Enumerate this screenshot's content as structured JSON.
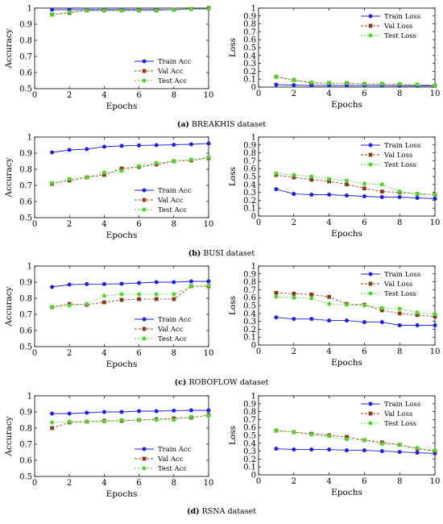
{
  "figure": {
    "captions": [
      {
        "tag": "(a)",
        "text": "BREAKHIS dataset"
      },
      {
        "tag": "(b)",
        "text": "BUSI dataset"
      },
      {
        "tag": "(c)",
        "text": "ROBOFLOW dataset"
      },
      {
        "tag": "(d)",
        "text": "RSNA dataset"
      }
    ]
  },
  "colors": {
    "train": "#1f1fe6",
    "val": "#8b3a1a",
    "test": "#4fd62a"
  },
  "chart_data": [
    {
      "type": "line",
      "panel": "a-accuracy",
      "xlabel": "Epochs",
      "ylabel": "Accuracy",
      "xlim": [
        0,
        10
      ],
      "ylim": [
        0.5,
        1
      ],
      "xticks": [
        0,
        2,
        4,
        6,
        8,
        10
      ],
      "yticks": [
        0.5,
        0.6,
        0.7,
        0.8,
        0.9,
        1
      ],
      "ytick_labels": [
        "0.5",
        "0.6",
        "0.7",
        "0.8",
        "0.9",
        "1"
      ],
      "legend": "bottom-right",
      "x": [
        1,
        2,
        3,
        4,
        5,
        6,
        7,
        8,
        9,
        10
      ],
      "series": [
        {
          "name": "Train Acc",
          "values": [
            0.99,
            0.99,
            0.99,
            0.99,
            0.99,
            0.99,
            0.99,
            0.99,
            0.995,
            0.995
          ]
        },
        {
          "name": "Val Acc",
          "values": [
            0.96,
            0.97,
            0.985,
            0.985,
            0.985,
            0.985,
            0.985,
            0.99,
            0.995,
            1.0
          ]
        },
        {
          "name": "Test Acc",
          "values": [
            0.96,
            0.975,
            0.985,
            0.985,
            0.985,
            0.985,
            0.985,
            0.99,
            0.995,
            0.995
          ]
        }
      ]
    },
    {
      "type": "line",
      "panel": "a-loss",
      "xlabel": "Epochs",
      "ylabel": "Loss",
      "xlim": [
        0,
        10
      ],
      "ylim": [
        0,
        1
      ],
      "xticks": [
        0,
        2,
        4,
        6,
        8,
        10
      ],
      "yticks": [
        0,
        0.1,
        0.2,
        0.3,
        0.4,
        0.5,
        0.6,
        0.7,
        0.8,
        0.9,
        1
      ],
      "ytick_labels": [
        "0",
        "0.1",
        "0.2",
        "0.3",
        "0.4",
        "0.5",
        "0.6",
        "0.7",
        "0.8",
        "0.9",
        "1"
      ],
      "legend": "top-right",
      "x": [
        1,
        2,
        3,
        4,
        5,
        6,
        7,
        8,
        9,
        10
      ],
      "series": [
        {
          "name": "Train Loss",
          "values": [
            0.03,
            0.025,
            0.02,
            0.02,
            0.02,
            0.02,
            0.02,
            0.015,
            0.015,
            0.015
          ]
        },
        {
          "name": "Val Loss",
          "values": [
            0.13,
            0.09,
            0.05,
            0.05,
            0.05,
            0.04,
            0.04,
            0.035,
            0.03,
            0.02
          ]
        },
        {
          "name": "Test Loss",
          "values": [
            0.13,
            0.09,
            0.06,
            0.05,
            0.05,
            0.04,
            0.04,
            0.04,
            0.03,
            0.02
          ]
        }
      ]
    },
    {
      "type": "line",
      "panel": "b-accuracy",
      "xlabel": "Epochs",
      "ylabel": "Accuracy",
      "xlim": [
        0,
        10
      ],
      "ylim": [
        0.5,
        1
      ],
      "xticks": [
        0,
        2,
        4,
        6,
        8,
        10
      ],
      "yticks": [
        0.5,
        0.6,
        0.7,
        0.8,
        0.9,
        1
      ],
      "ytick_labels": [
        "0.5",
        "0.6",
        "0.7",
        "0.8",
        "0.9",
        "1"
      ],
      "legend": "bottom-right",
      "x": [
        1,
        2,
        3,
        4,
        5,
        6,
        7,
        8,
        9,
        10
      ],
      "series": [
        {
          "name": "Train Acc",
          "values": [
            0.905,
            0.92,
            0.925,
            0.94,
            0.945,
            0.948,
            0.95,
            0.952,
            0.955,
            0.96
          ]
        },
        {
          "name": "Val Acc",
          "values": [
            0.71,
            0.73,
            0.75,
            0.765,
            0.805,
            0.815,
            0.83,
            0.85,
            0.855,
            0.87
          ]
        },
        {
          "name": "Test Acc",
          "values": [
            0.715,
            0.74,
            0.75,
            0.78,
            0.79,
            0.82,
            0.84,
            0.85,
            0.86,
            0.875
          ]
        }
      ]
    },
    {
      "type": "line",
      "panel": "b-loss",
      "xlabel": "Epochs",
      "ylabel": "Loss",
      "xlim": [
        0,
        10
      ],
      "ylim": [
        0,
        1
      ],
      "xticks": [
        0,
        2,
        4,
        6,
        8,
        10
      ],
      "yticks": [
        0,
        0.1,
        0.2,
        0.3,
        0.4,
        0.5,
        0.6,
        0.7,
        0.8,
        0.9,
        1
      ],
      "ytick_labels": [
        "0",
        "0.1",
        "0.2",
        "0.3",
        "0.4",
        "0.5",
        "0.6",
        "0.7",
        "0.8",
        "0.9",
        "1"
      ],
      "legend": "top-right",
      "x": [
        1,
        2,
        3,
        4,
        5,
        6,
        7,
        8,
        9,
        10
      ],
      "series": [
        {
          "name": "Train Loss",
          "values": [
            0.34,
            0.28,
            0.27,
            0.27,
            0.26,
            0.25,
            0.24,
            0.24,
            0.23,
            0.22
          ]
        },
        {
          "name": "Val Loss",
          "values": [
            0.52,
            0.49,
            0.46,
            0.44,
            0.4,
            0.35,
            0.31,
            0.3,
            0.28,
            0.27
          ]
        },
        {
          "name": "Test Loss",
          "values": [
            0.54,
            0.52,
            0.5,
            0.47,
            0.45,
            0.41,
            0.4,
            0.31,
            0.28,
            0.27
          ]
        }
      ]
    },
    {
      "type": "line",
      "panel": "c-accuracy",
      "xlabel": "Epochs",
      "ylabel": "Accuracy",
      "xlim": [
        0,
        10
      ],
      "ylim": [
        0.5,
        1
      ],
      "xticks": [
        0,
        2,
        4,
        6,
        8,
        10
      ],
      "yticks": [
        0.5,
        0.6,
        0.7,
        0.8,
        0.9,
        1
      ],
      "ytick_labels": [
        "0.5",
        "0.6",
        "0.7",
        "0.8",
        "0.9",
        "1"
      ],
      "legend": "bottom-right",
      "x": [
        1,
        2,
        3,
        4,
        5,
        6,
        7,
        8,
        9,
        10
      ],
      "series": [
        {
          "name": "Train Acc",
          "values": [
            0.87,
            0.885,
            0.888,
            0.888,
            0.89,
            0.895,
            0.9,
            0.9,
            0.905,
            0.905
          ]
        },
        {
          "name": "Val Acc",
          "values": [
            0.745,
            0.765,
            0.76,
            0.775,
            0.79,
            0.795,
            0.795,
            0.795,
            0.875,
            0.875
          ]
        },
        {
          "name": "Test Acc",
          "values": [
            0.745,
            0.755,
            0.765,
            0.815,
            0.825,
            0.825,
            0.825,
            0.825,
            0.875,
            0.88
          ]
        }
      ]
    },
    {
      "type": "line",
      "panel": "c-loss",
      "xlabel": "Epochs",
      "ylabel": "Loss",
      "xlim": [
        0,
        10
      ],
      "ylim": [
        0,
        1
      ],
      "xticks": [
        0,
        2,
        4,
        6,
        8,
        10
      ],
      "yticks": [
        0,
        0.1,
        0.2,
        0.3,
        0.4,
        0.5,
        0.6,
        0.7,
        0.8,
        0.9,
        1
      ],
      "ytick_labels": [
        "0",
        "0.1",
        "0.2",
        "0.3",
        "0.4",
        "0.5",
        "0.6",
        "0.7",
        "0.8",
        "0.9",
        "1"
      ],
      "legend": "top-right",
      "x": [
        1,
        2,
        3,
        4,
        5,
        6,
        7,
        8,
        9,
        10
      ],
      "series": [
        {
          "name": "Train Loss",
          "values": [
            0.35,
            0.33,
            0.33,
            0.31,
            0.31,
            0.29,
            0.29,
            0.25,
            0.25,
            0.25
          ]
        },
        {
          "name": "Val Loss",
          "values": [
            0.66,
            0.65,
            0.64,
            0.61,
            0.52,
            0.51,
            0.44,
            0.4,
            0.38,
            0.36
          ]
        },
        {
          "name": "Test Loss",
          "values": [
            0.61,
            0.6,
            0.59,
            0.52,
            0.51,
            0.5,
            0.47,
            0.46,
            0.41,
            0.39
          ]
        }
      ]
    },
    {
      "type": "line",
      "panel": "d-accuracy",
      "xlabel": "Epochs",
      "ylabel": "Accuracy",
      "xlim": [
        0,
        10
      ],
      "ylim": [
        0.5,
        1
      ],
      "xticks": [
        0,
        2,
        4,
        6,
        8,
        10
      ],
      "yticks": [
        0.5,
        0.6,
        0.7,
        0.8,
        0.9,
        1
      ],
      "ytick_labels": [
        "0.5",
        "0.6",
        "0.7",
        "0.8",
        "0.9",
        "1"
      ],
      "legend": "bottom-right",
      "x": [
        1,
        2,
        3,
        4,
        5,
        6,
        7,
        8,
        9,
        10
      ],
      "series": [
        {
          "name": "Train Acc",
          "values": [
            0.89,
            0.89,
            0.895,
            0.9,
            0.9,
            0.905,
            0.905,
            0.908,
            0.91,
            0.91
          ]
        },
        {
          "name": "Val Acc",
          "values": [
            0.8,
            0.835,
            0.84,
            0.845,
            0.845,
            0.85,
            0.855,
            0.86,
            0.865,
            0.88
          ]
        },
        {
          "name": "Test Acc",
          "values": [
            0.835,
            0.84,
            0.84,
            0.84,
            0.85,
            0.85,
            0.85,
            0.85,
            0.87,
            0.875
          ]
        }
      ]
    },
    {
      "type": "line",
      "panel": "d-loss",
      "xlabel": "Epochs",
      "ylabel": "Loss",
      "xlim": [
        0,
        10
      ],
      "ylim": [
        0,
        1
      ],
      "xticks": [
        0,
        2,
        4,
        6,
        8,
        10
      ],
      "yticks": [
        0,
        0.1,
        0.2,
        0.3,
        0.4,
        0.5,
        0.6,
        0.7,
        0.8,
        0.9,
        1
      ],
      "ytick_labels": [
        "0",
        "0.1",
        "0.2",
        "0.3",
        "0.4",
        "0.5",
        "0.6",
        "0.7",
        "0.8",
        "0.9",
        "1"
      ],
      "legend": "top-right",
      "x": [
        1,
        2,
        3,
        4,
        5,
        6,
        7,
        8,
        9,
        10
      ],
      "series": [
        {
          "name": "Train Loss",
          "values": [
            0.33,
            0.32,
            0.32,
            0.32,
            0.31,
            0.31,
            0.3,
            0.29,
            0.28,
            0.27
          ]
        },
        {
          "name": "Val Loss",
          "values": [
            0.56,
            0.54,
            0.52,
            0.5,
            0.48,
            0.44,
            0.41,
            0.38,
            0.33,
            0.3
          ]
        },
        {
          "name": "Test Loss",
          "values": [
            0.56,
            0.54,
            0.51,
            0.49,
            0.45,
            0.44,
            0.39,
            0.38,
            0.34,
            0.31
          ]
        }
      ]
    }
  ]
}
